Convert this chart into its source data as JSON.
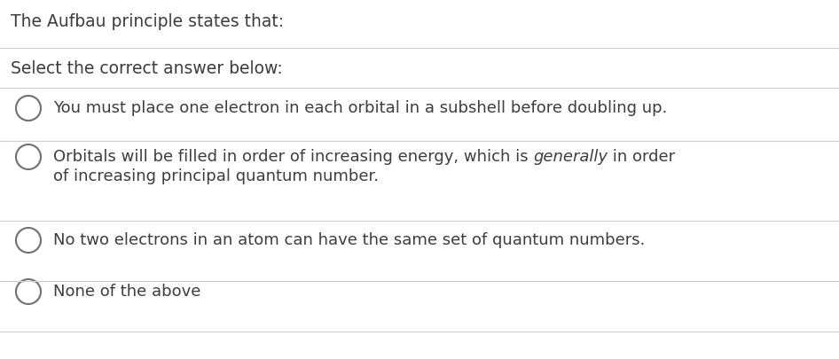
{
  "background_color": "#ffffff",
  "title_text": "The Aufbau principle states that:",
  "subtitle_text": "Select the correct answer below:",
  "title_color": "#3d3d3d",
  "answer_color": "#3d3d3d",
  "circle_color": "#707070",
  "line_color": "#cccccc",
  "title_fontsize": 13.5,
  "subtitle_fontsize": 13.5,
  "answer_fontsize": 13.0,
  "answer1": "You must place one electron in each orbital in a subshell before doubling up.",
  "answer2_pre": "Orbitals will be filled in order of increasing energy, which is ",
  "answer2_italic": "generally",
  "answer2_post": " in order",
  "answer2_line2": "of increasing principal quantum number.",
  "answer3": "No two electrons in an atom can have the same set of quantum numbers.",
  "answer4": "None of the above"
}
